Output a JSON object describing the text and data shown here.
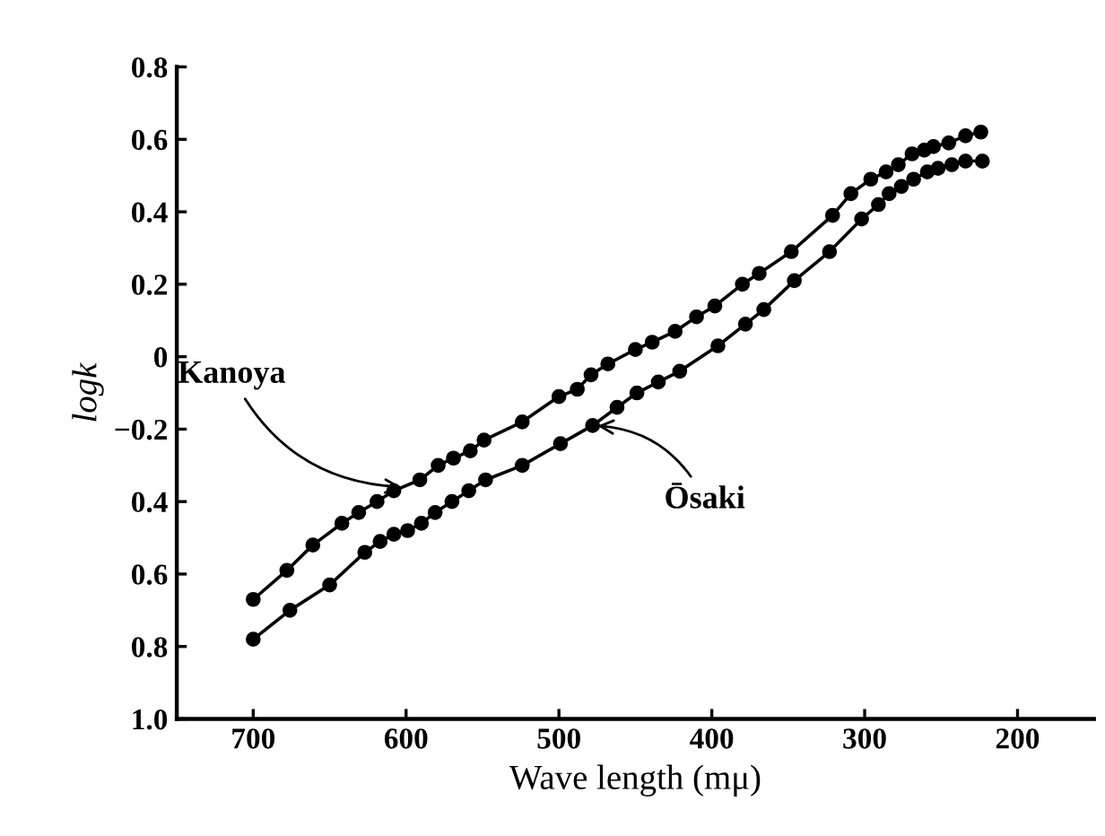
{
  "chart_data": {
    "type": "line",
    "xlabel": "Wave length (mμ)",
    "ylabel": "logk",
    "xlim": [
      750,
      150
    ],
    "ylim": [
      -1.0,
      0.8
    ],
    "xticks": [
      700,
      600,
      500,
      400,
      300,
      200
    ],
    "yticks": [
      {
        "value": 0.8,
        "label": "0.8"
      },
      {
        "value": 0.6,
        "label": "0.6"
      },
      {
        "value": 0.4,
        "label": "0.4"
      },
      {
        "value": 0.2,
        "label": "0.2"
      },
      {
        "value": 0,
        "label": "0"
      },
      {
        "value": -0.2,
        "label": "−0.2"
      },
      {
        "value": -0.4,
        "label": "0.4"
      },
      {
        "value": -0.6,
        "label": "0.6"
      },
      {
        "value": -0.8,
        "label": "0.8"
      },
      {
        "value": -1.0,
        "label": "1.0"
      }
    ],
    "marker": "circle",
    "line_style": "solid",
    "grid": false,
    "legend": false,
    "series": [
      {
        "color": "#000000",
        "x": [
          700,
          678,
          661,
          642,
          631,
          619,
          608,
          591,
          579,
          569,
          558,
          549,
          524,
          500,
          488,
          479,
          468,
          450,
          439,
          424,
          410,
          398,
          380,
          369,
          348,
          321,
          309,
          296,
          286,
          278,
          269,
          261,
          255,
          245,
          234,
          224
        ],
        "values": [
          -0.67,
          -0.59,
          -0.52,
          -0.46,
          -0.43,
          -0.4,
          -0.37,
          -0.34,
          -0.3,
          -0.28,
          -0.26,
          -0.23,
          -0.18,
          -0.11,
          -0.09,
          -0.05,
          -0.02,
          0.02,
          0.04,
          0.07,
          0.11,
          0.14,
          0.2,
          0.23,
          0.29,
          0.39,
          0.45,
          0.49,
          0.51,
          0.53,
          0.56,
          0.57,
          0.58,
          0.59,
          0.61,
          0.62
        ]
      },
      {
        "color": "#000000",
        "x": [
          700,
          676,
          650,
          627,
          617,
          608,
          599,
          590,
          581,
          570,
          559,
          548,
          524,
          499,
          478,
          462,
          449,
          435,
          421,
          396,
          378,
          366,
          346,
          323,
          302,
          291,
          284,
          276,
          268,
          259,
          252,
          243,
          234,
          223
        ],
        "values": [
          -0.78,
          -0.7,
          -0.63,
          -0.54,
          -0.51,
          -0.49,
          -0.48,
          -0.46,
          -0.43,
          -0.4,
          -0.37,
          -0.34,
          -0.3,
          -0.24,
          -0.19,
          -0.14,
          -0.1,
          -0.07,
          -0.04,
          0.03,
          0.09,
          0.13,
          0.21,
          0.29,
          0.38,
          0.42,
          0.45,
          0.47,
          0.49,
          0.51,
          0.52,
          0.53,
          0.54,
          0.54
        ]
      }
    ],
    "annotations": [
      {
        "text": "Kanoya",
        "x": 600,
        "y": -0.36
      },
      {
        "text": "Ōsaki",
        "x": 478,
        "y": -0.19
      }
    ]
  }
}
